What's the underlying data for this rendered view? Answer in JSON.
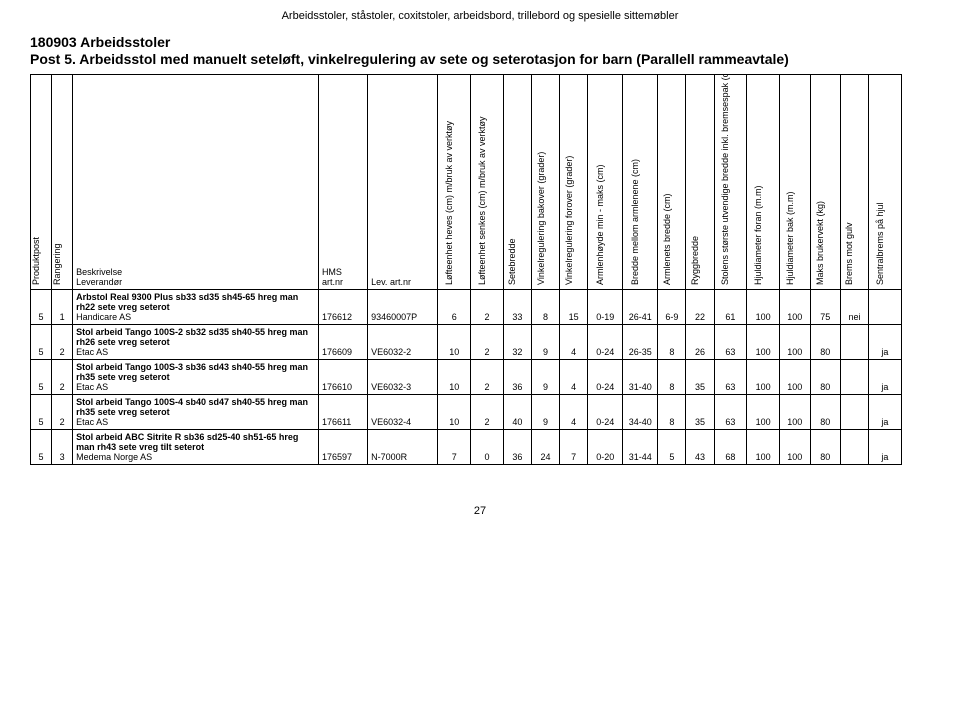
{
  "header": "Arbeidsstoler, ståstoler, coxitstoler, arbeidsbord, trillebord og spesielle sittemøbler",
  "title1": "180903 Arbeidsstoler",
  "title2": "Post 5. Arbeidsstol med manuelt seteløft, vinkelregulering av sete og seterotasjon for barn (Parallell rammeavtale)",
  "page_number": "27",
  "columns": [
    "Produktpost",
    "Rangering",
    "",
    "HMS art.nr",
    "Lev. art.nr",
    "Løfteenhet heves (cm) m/bruk av verktøy",
    "Løfteenhet senkes (cm) m/bruk av verktøy",
    "Setebredde",
    "Vinkelregulering bakover (grader)",
    "Vinkelregulering forover (grader)",
    "Armlenhøyde min - maks (cm)",
    "Bredde mellom armlenene (cm)",
    "Armlenets bredde (cm)",
    "Ryggbredde",
    "Stolens største utvendige bredde inkl. bremsespak (cm)",
    "Hjuldiameter foran (m.m)",
    "Hjuldiameter bak (m.m)",
    "Maks brukervekt (kg)",
    "Brems mot gulv",
    "Sentralbrems på hjul"
  ],
  "desc_header_top": "Beskrivelse",
  "desc_header_bottom": "Leverandør",
  "rows": [
    {
      "pp": "5",
      "rank": "1",
      "desc_bold": "Arbstol Real 9300 Plus sb33 sd35 sh45-65 hreg man rh22 sete vreg seterot",
      "supplier": "Handicare AS",
      "hms": "176612",
      "lev": "93460007P",
      "v": [
        "6",
        "2",
        "33",
        "8",
        "15",
        "0-19",
        "26-41",
        "6-9",
        "22",
        "61",
        "100",
        "100",
        "75",
        "nei",
        ""
      ]
    },
    {
      "pp": "5",
      "rank": "2",
      "desc_bold": "Stol arbeid Tango 100S-2 sb32 sd35 sh40-55 hreg man rh26 sete vreg seterot",
      "supplier": "Etac AS",
      "hms": "176609",
      "lev": "VE6032-2",
      "v": [
        "10",
        "2",
        "32",
        "9",
        "4",
        "0-24",
        "26-35",
        "8",
        "26",
        "63",
        "100",
        "100",
        "80",
        "",
        "ja"
      ]
    },
    {
      "pp": "5",
      "rank": "2",
      "desc_bold": "Stol arbeid Tango 100S-3 sb36 sd43 sh40-55 hreg man rh35 sete vreg seterot",
      "supplier": "Etac AS",
      "hms": "176610",
      "lev": "VE6032-3",
      "v": [
        "10",
        "2",
        "36",
        "9",
        "4",
        "0-24",
        "31-40",
        "8",
        "35",
        "63",
        "100",
        "100",
        "80",
        "",
        "ja"
      ]
    },
    {
      "pp": "5",
      "rank": "2",
      "desc_bold": "Stol arbeid Tango 100S-4 sb40 sd47 sh40-55 hreg man rh35 sete vreg seterot",
      "supplier": "Etac AS",
      "hms": "176611",
      "lev": "VE6032-4",
      "v": [
        "10",
        "2",
        "40",
        "9",
        "4",
        "0-24",
        "34-40",
        "8",
        "35",
        "63",
        "100",
        "100",
        "80",
        "",
        "ja"
      ]
    },
    {
      "pp": "5",
      "rank": "3",
      "desc_bold": "Stol arbeid ABC Sitrite R sb36 sd25-40 sh51-65 hreg man rh43 sete vreg tilt seterot",
      "supplier": "Medema Norge AS",
      "hms": "176597",
      "lev": "N-7000R",
      "v": [
        "7",
        "0",
        "36",
        "24",
        "7",
        "0-20",
        "31-44",
        "5",
        "43",
        "68",
        "100",
        "100",
        "80",
        "",
        "ja"
      ]
    }
  ]
}
